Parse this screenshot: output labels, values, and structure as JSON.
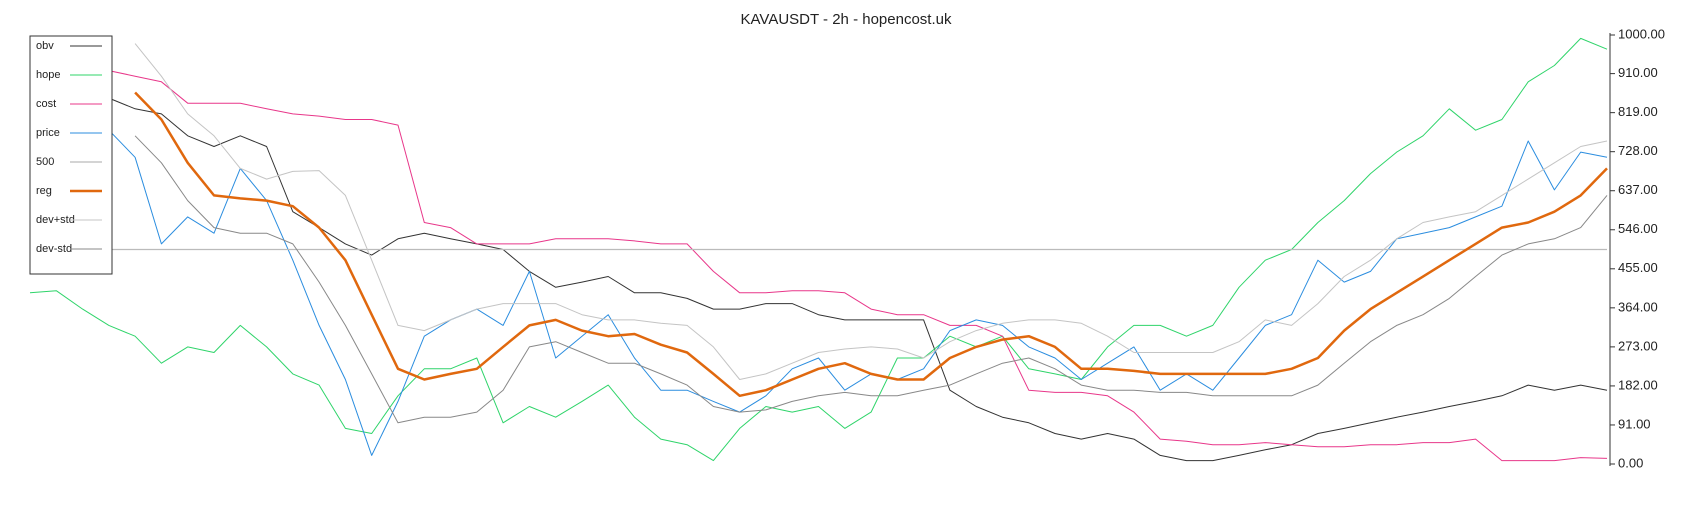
{
  "chart_data": {
    "type": "line",
    "title": "KAVAUSDT - 2h - hopencost.uk",
    "ylim": [
      0,
      1000
    ],
    "yticks": [
      {
        "value": 0,
        "label": "0.00"
      },
      {
        "value": 91,
        "label": "91.00"
      },
      {
        "value": 182,
        "label": "182.00"
      },
      {
        "value": 273,
        "label": "273.00"
      },
      {
        "value": 364,
        "label": "364.00"
      },
      {
        "value": 455,
        "label": "455.00"
      },
      {
        "value": 546,
        "label": "546.00"
      },
      {
        "value": 637,
        "label": "637.00"
      },
      {
        "value": 728,
        "label": "728.00"
      },
      {
        "value": 819,
        "label": "819.00"
      },
      {
        "value": 910,
        "label": "910.00"
      },
      {
        "value": 1000,
        "label": "1000.00"
      }
    ],
    "y_axis_side": "right",
    "legend": "upper left",
    "series": [
      {
        "name": "obv",
        "color": "#333333",
        "width": 1,
        "values": [
          null,
          null,
          null,
          853,
          828,
          816,
          765,
          740,
          765,
          740,
          588,
          551,
          513,
          487,
          525,
          538,
          525,
          513,
          500,
          449,
          412,
          424,
          437,
          399,
          399,
          386,
          361,
          361,
          374,
          374,
          348,
          336,
          336,
          336,
          336,
          172,
          134,
          109,
          96,
          71,
          58,
          71,
          58,
          20,
          8,
          8,
          20,
          33,
          45,
          71,
          83,
          96,
          109,
          121,
          134,
          146,
          159,
          184,
          172,
          184,
          172
        ]
      },
      {
        "name": "hope",
        "color": "#2fd46a",
        "width": 1,
        "values": [
          399,
          404,
          361,
          323,
          298,
          235,
          273,
          260,
          323,
          273,
          210,
          184,
          83,
          71,
          159,
          222,
          222,
          247,
          96,
          134,
          109,
          146,
          184,
          109,
          58,
          45,
          8,
          83,
          134,
          121,
          134,
          83,
          121,
          247,
          247,
          298,
          273,
          298,
          222,
          210,
          197,
          273,
          323,
          323,
          298,
          323,
          412,
          475,
          500,
          563,
          614,
          677,
          727,
          765,
          828,
          778,
          803,
          891,
          929,
          992,
          967
        ]
      },
      {
        "name": "cost",
        "color": "#e8378a",
        "width": 1,
        "values": [
          null,
          null,
          null,
          917,
          904,
          891,
          841,
          841,
          841,
          828,
          816,
          811,
          803,
          803,
          790,
          563,
          551,
          513,
          513,
          513,
          525,
          525,
          525,
          520,
          513,
          513,
          449,
          399,
          399,
          404,
          404,
          399,
          361,
          348,
          348,
          323,
          323,
          298,
          172,
          167,
          167,
          159,
          121,
          58,
          53,
          45,
          45,
          50,
          45,
          40,
          40,
          45,
          45,
          50,
          50,
          58,
          8,
          8,
          8,
          15,
          13
        ]
      },
      {
        "name": "price",
        "color": "#2b8ddf",
        "width": 1,
        "values": [
          null,
          null,
          null,
          778,
          715,
          513,
          576,
          538,
          689,
          614,
          475,
          323,
          197,
          20,
          146,
          298,
          336,
          361,
          323,
          449,
          247,
          298,
          348,
          247,
          172,
          172,
          146,
          121,
          159,
          222,
          247,
          172,
          210,
          197,
          222,
          311,
          336,
          323,
          273,
          247,
          197,
          235,
          273,
          172,
          210,
          172,
          247,
          323,
          348,
          475,
          424,
          449,
          525,
          538,
          551,
          576,
          601,
          753,
          639,
          727,
          715
        ]
      },
      {
        "name": "500",
        "color": "#bbbbbb",
        "width": 1.2,
        "values": [
          500,
          500,
          500,
          500,
          500,
          500,
          500,
          500,
          500,
          500,
          500,
          500,
          500,
          500,
          500,
          500,
          500,
          500,
          500,
          500,
          500,
          500,
          500,
          500,
          500,
          500,
          500,
          500,
          500,
          500,
          500,
          500,
          500,
          500,
          500,
          500,
          500,
          500,
          500,
          500,
          500,
          500,
          500,
          500,
          500,
          500,
          500,
          500,
          500,
          500,
          500,
          500,
          500,
          500,
          500,
          500,
          500,
          500,
          500,
          500,
          500
        ]
      },
      {
        "name": "reg",
        "color": "#e0680e",
        "width": 2.5,
        "values": [
          null,
          null,
          null,
          null,
          866,
          803,
          702,
          626,
          619,
          614,
          601,
          551,
          475,
          348,
          222,
          197,
          210,
          222,
          273,
          323,
          336,
          311,
          298,
          303,
          278,
          260,
          210,
          159,
          172,
          197,
          222,
          235,
          210,
          197,
          197,
          247,
          273,
          290,
          298,
          273,
          222,
          222,
          217,
          210,
          210,
          210,
          210,
          210,
          222,
          247,
          311,
          361,
          399,
          437,
          475,
          513,
          551,
          563,
          588,
          626,
          689
        ]
      },
      {
        "name": "dev+std",
        "color": "#c4c4c4",
        "width": 1,
        "values": [
          null,
          null,
          null,
          null,
          980,
          904,
          816,
          765,
          689,
          664,
          682,
          684,
          626,
          475,
          323,
          311,
          336,
          361,
          374,
          374,
          374,
          348,
          336,
          336,
          328,
          323,
          273,
          197,
          210,
          235,
          260,
          268,
          273,
          268,
          247,
          285,
          311,
          328,
          336,
          336,
          328,
          298,
          260,
          260,
          260,
          260,
          285,
          336,
          323,
          374,
          437,
          475,
          525,
          563,
          576,
          588,
          626,
          664,
          702,
          740,
          753
        ]
      },
      {
        "name": "dev-std",
        "color": "#888888",
        "width": 1,
        "values": [
          null,
          null,
          null,
          null,
          765,
          702,
          614,
          551,
          538,
          538,
          513,
          424,
          323,
          210,
          96,
          109,
          109,
          121,
          172,
          273,
          285,
          260,
          235,
          235,
          210,
          184,
          134,
          121,
          126,
          146,
          159,
          167,
          159,
          159,
          172,
          184,
          210,
          235,
          247,
          222,
          184,
          172,
          172,
          167,
          167,
          159,
          159,
          159,
          159,
          184,
          235,
          285,
          323,
          348,
          386,
          437,
          487,
          513,
          525,
          551,
          626
        ]
      }
    ]
  }
}
